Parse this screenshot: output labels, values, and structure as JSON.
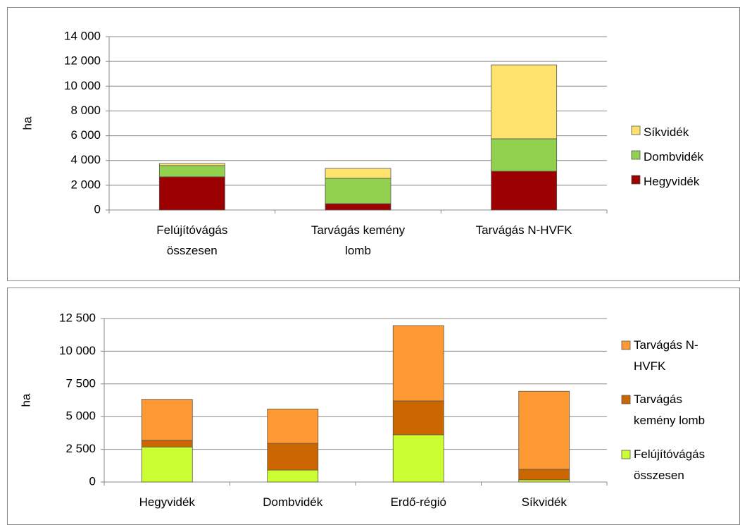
{
  "chart_data": [
    {
      "type": "bar",
      "stacked": true,
      "y_label": "ha",
      "categories": [
        "Felújítóvágás összesen",
        "Tarvágás kemény lomb",
        "Tarvágás N-HVFK"
      ],
      "series": [
        {
          "name": "Hegyvidék",
          "color": "#9c0000",
          "values": [
            2680,
            510,
            3130
          ]
        },
        {
          "name": "Dombvidék",
          "color": "#92d050",
          "values": [
            910,
            2050,
            2620
          ]
        },
        {
          "name": "Síkvidék",
          "color": "#ffe36e",
          "values": [
            170,
            800,
            5970
          ]
        }
      ],
      "ylim": [
        0,
        14000
      ],
      "yticks": [
        0,
        {
          "value": 2000,
          "label": "2 000"
        },
        {
          "value": 4000,
          "label": "4 000"
        },
        {
          "value": 6000,
          "label": "6 000"
        },
        {
          "value": 8000,
          "label": "8 000"
        },
        {
          "value": 10000,
          "label": "10 000"
        },
        {
          "value": 12000,
          "label": "12 000"
        },
        {
          "value": 14000,
          "label": "14 000"
        }
      ],
      "grid": true,
      "legend": "right"
    },
    {
      "type": "bar",
      "stacked": true,
      "y_label": "ha",
      "categories": [
        "Hegyvidék",
        "Dombvidék",
        "Erdő-régió",
        "Síkvidék"
      ],
      "series": [
        {
          "name": "Felújítóvágás összesen",
          "color": "#ccff33",
          "values": [
            2680,
            910,
            3610,
            170
          ]
        },
        {
          "name": "Tarvágás kemény lomb",
          "color": "#cc6600",
          "values": [
            510,
            2050,
            2590,
            800
          ]
        },
        {
          "name": "Tarvágás N-HVFK",
          "color": "#ff9933",
          "values": [
            3130,
            2620,
            5760,
            5970
          ]
        }
      ],
      "ylim": [
        0,
        12500
      ],
      "yticks": [
        0,
        {
          "value": 2500,
          "label": "2 500"
        },
        {
          "value": 5000,
          "label": "5 000"
        },
        {
          "value": 7500,
          "label": "7 500"
        },
        {
          "value": 10000,
          "label": "10 000"
        },
        {
          "value": 12500,
          "label": "12 500"
        }
      ],
      "grid": true,
      "legend": "right"
    }
  ]
}
